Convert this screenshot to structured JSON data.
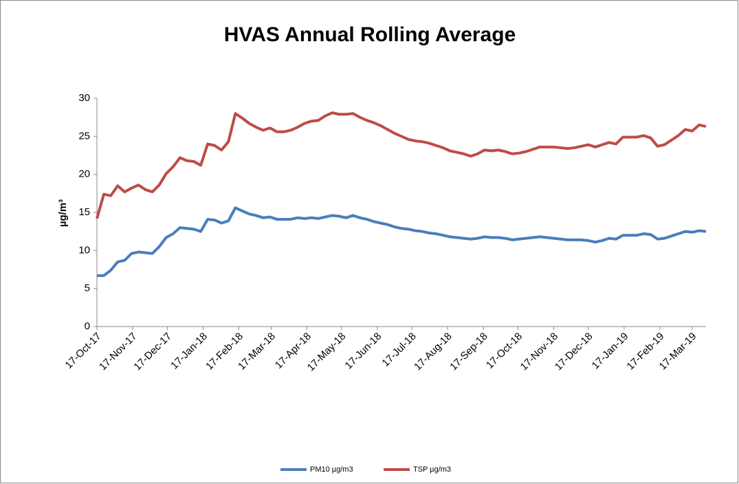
{
  "chart_data": {
    "type": "line",
    "title": "HVAS Annual Rolling Average",
    "y_label": "µg/m³",
    "x": [
      "2017-10-17",
      "2017-10-23",
      "2017-10-29",
      "2017-11-04",
      "2017-11-10",
      "2017-11-16",
      "2017-11-22",
      "2017-11-28",
      "2017-12-04",
      "2017-12-10",
      "2017-12-16",
      "2017-12-22",
      "2017-12-28",
      "2018-01-03",
      "2018-01-09",
      "2018-01-15",
      "2018-01-21",
      "2018-01-27",
      "2018-02-02",
      "2018-02-08",
      "2018-02-14",
      "2018-02-20",
      "2018-02-26",
      "2018-03-04",
      "2018-03-10",
      "2018-03-16",
      "2018-03-22",
      "2018-03-28",
      "2018-04-03",
      "2018-04-09",
      "2018-04-15",
      "2018-04-21",
      "2018-04-27",
      "2018-05-03",
      "2018-05-09",
      "2018-05-15",
      "2018-05-21",
      "2018-05-27",
      "2018-06-02",
      "2018-06-08",
      "2018-06-14",
      "2018-06-20",
      "2018-06-26",
      "2018-07-02",
      "2018-07-08",
      "2018-07-14",
      "2018-07-20",
      "2018-07-26",
      "2018-08-01",
      "2018-08-07",
      "2018-08-13",
      "2018-08-19",
      "2018-08-25",
      "2018-08-31",
      "2018-09-06",
      "2018-09-12",
      "2018-09-18",
      "2018-09-24",
      "2018-09-30",
      "2018-10-06",
      "2018-10-12",
      "2018-10-18",
      "2018-10-24",
      "2018-10-30",
      "2018-11-05",
      "2018-11-11",
      "2018-11-17",
      "2018-11-23",
      "2018-11-29",
      "2018-12-05",
      "2018-12-11",
      "2018-12-17",
      "2018-12-23",
      "2018-12-29",
      "2019-01-04",
      "2019-01-10",
      "2019-01-16",
      "2019-01-22",
      "2019-01-28",
      "2019-02-03",
      "2019-02-09",
      "2019-02-15",
      "2019-02-21",
      "2019-02-27",
      "2019-03-05",
      "2019-03-11",
      "2019-03-17",
      "2019-03-23",
      "2019-03-29"
    ],
    "series": [
      {
        "name": "PM10 µg/m3",
        "color": "#4a7ebb",
        "values": [
          6.7,
          6.7,
          7.4,
          8.5,
          8.7,
          9.6,
          9.8,
          9.7,
          9.6,
          10.5,
          11.7,
          12.2,
          13.0,
          12.9,
          12.8,
          12.5,
          14.1,
          14.0,
          13.6,
          13.9,
          15.6,
          15.2,
          14.8,
          14.6,
          14.3,
          14.4,
          14.1,
          14.1,
          14.1,
          14.3,
          14.2,
          14.3,
          14.2,
          14.4,
          14.6,
          14.5,
          14.3,
          14.6,
          14.3,
          14.1,
          13.8,
          13.6,
          13.4,
          13.1,
          12.9,
          12.8,
          12.6,
          12.5,
          12.3,
          12.2,
          12.0,
          11.8,
          11.7,
          11.6,
          11.5,
          11.6,
          11.8,
          11.7,
          11.7,
          11.6,
          11.4,
          11.5,
          11.6,
          11.7,
          11.8,
          11.7,
          11.6,
          11.5,
          11.4,
          11.4,
          11.4,
          11.3,
          11.1,
          11.3,
          11.6,
          11.5,
          12.0,
          12.0,
          12.0,
          12.2,
          12.1,
          11.5,
          11.6,
          11.9,
          12.2,
          12.5,
          12.4,
          12.6,
          12.5
        ]
      },
      {
        "name": "TSP µg/m3",
        "color": "#be4b48",
        "values": [
          14.2,
          17.4,
          17.2,
          18.5,
          17.7,
          18.2,
          18.6,
          18.0,
          17.7,
          18.6,
          20.1,
          21.0,
          22.2,
          21.8,
          21.7,
          21.2,
          24.0,
          23.8,
          23.2,
          24.3,
          28.0,
          27.4,
          26.7,
          26.2,
          25.8,
          26.1,
          25.6,
          25.6,
          25.8,
          26.2,
          26.7,
          27.0,
          27.1,
          27.7,
          28.1,
          27.9,
          27.9,
          28.0,
          27.5,
          27.1,
          26.8,
          26.4,
          25.9,
          25.4,
          25.0,
          24.6,
          24.4,
          24.3,
          24.1,
          23.8,
          23.5,
          23.1,
          22.9,
          22.7,
          22.4,
          22.7,
          23.2,
          23.1,
          23.2,
          23.0,
          22.7,
          22.8,
          23.0,
          23.3,
          23.6,
          23.6,
          23.6,
          23.5,
          23.4,
          23.5,
          23.7,
          23.9,
          23.6,
          23.9,
          24.2,
          24.0,
          24.9,
          24.9,
          24.9,
          25.1,
          24.8,
          23.7,
          23.9,
          24.5,
          25.1,
          25.9,
          25.7,
          26.5,
          26.3
        ]
      }
    ],
    "xlim": [
      "2017-10-17",
      "2019-03-29"
    ],
    "xticks": [
      {
        "value": "2017-10-17",
        "label": "17-Oct-17"
      },
      {
        "value": "2017-11-17",
        "label": "17-Nov-17"
      },
      {
        "value": "2017-12-17",
        "label": "17-Dec-17"
      },
      {
        "value": "2018-01-17",
        "label": "17-Jan-18"
      },
      {
        "value": "2018-02-17",
        "label": "17-Feb-18"
      },
      {
        "value": "2018-03-17",
        "label": "17-Mar-18"
      },
      {
        "value": "2018-04-17",
        "label": "17-Apr-18"
      },
      {
        "value": "2018-05-17",
        "label": "17-May-18"
      },
      {
        "value": "2018-06-17",
        "label": "17-Jun-18"
      },
      {
        "value": "2018-07-17",
        "label": "17-Jul-18"
      },
      {
        "value": "2018-08-17",
        "label": "17-Aug-18"
      },
      {
        "value": "2018-09-17",
        "label": "17-Sep-18"
      },
      {
        "value": "2018-10-17",
        "label": "17-Oct-18"
      },
      {
        "value": "2018-11-17",
        "label": "17-Nov-18"
      },
      {
        "value": "2018-12-17",
        "label": "17-Dec-18"
      },
      {
        "value": "2019-01-17",
        "label": "17-Jan-19"
      },
      {
        "value": "2019-02-17",
        "label": "17-Feb-19"
      },
      {
        "value": "2019-03-17",
        "label": "17-Mar-19"
      }
    ],
    "ylim": [
      0,
      30
    ],
    "yticks": [
      0,
      5,
      10,
      15,
      20,
      25,
      30
    ],
    "grid": false,
    "legend": "bottom"
  }
}
